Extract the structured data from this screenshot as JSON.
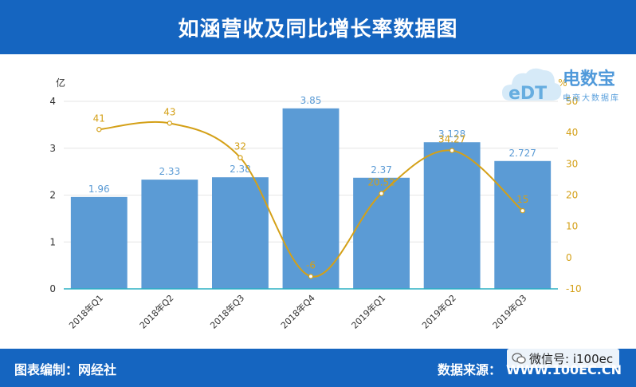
{
  "header": {
    "title": "如涵营收及同比增长率数据图"
  },
  "footer": {
    "compiler": "图表编制：网经社",
    "source_label": "数据来源：",
    "source_url": "WWW.100EC.CN",
    "wechat": "微信号: i100ec"
  },
  "logo": {
    "brand": "电数宝",
    "sub": "电商大数据库",
    "mark": "eDT"
  },
  "colors": {
    "bar": "#5b9bd5",
    "line": "#d4a017",
    "axis_teal": "#2ab0c4",
    "header": "#1565c0"
  },
  "chart_data": {
    "type": "bar",
    "categories": [
      "2018年Q1",
      "2018年Q2",
      "2018年Q3",
      "2018年Q4",
      "2019年Q1",
      "2019年Q2",
      "2019年Q3"
    ],
    "series": [
      {
        "values": [
          1.96,
          2.33,
          2.38,
          3.85,
          2.37,
          3.128,
          2.727
        ],
        "labels": [
          "1.96",
          "2.33",
          "2.38",
          "3.85",
          "2.37",
          "3.128",
          "2.727"
        ],
        "axis": "left",
        "kind": "bar"
      },
      {
        "values": [
          41,
          43,
          32,
          -6,
          20.52,
          34.27,
          15
        ],
        "labels": [
          "41",
          "43",
          "32",
          "-6",
          "20.52",
          "34.27",
          "15"
        ],
        "axis": "right",
        "kind": "line"
      }
    ],
    "ylabel_left": "亿",
    "ylabel_right": "%",
    "ylim_left": [
      0,
      4
    ],
    "yticks_left": [
      "0",
      "1",
      "2",
      "3",
      "4"
    ],
    "ylim_right": [
      -10,
      50
    ],
    "yticks_right": [
      "-10",
      "0",
      "10",
      "20",
      "30",
      "40",
      "50"
    ],
    "grid": true
  }
}
